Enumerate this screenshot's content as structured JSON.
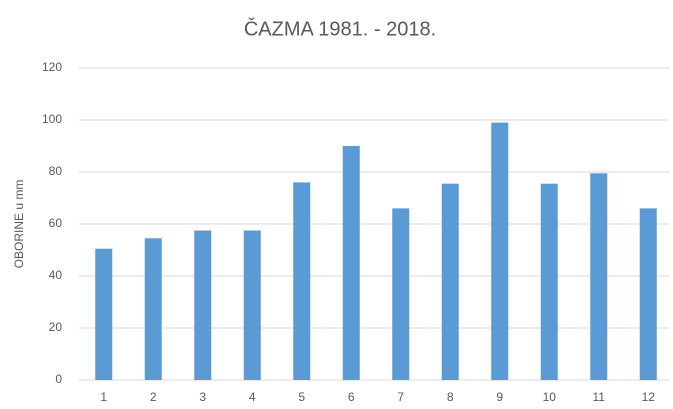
{
  "chart_data": {
    "type": "bar",
    "title": "ČAZMA 1981. - 2018.",
    "y_label": "OBORINE u mm",
    "categories": [
      "1",
      "2",
      "3",
      "4",
      "5",
      "6",
      "7",
      "8",
      "9",
      "10",
      "11",
      "12"
    ],
    "values": [
      50.5,
      54.5,
      57.5,
      57.5,
      76,
      90,
      66,
      75.5,
      99,
      75.5,
      79.5,
      66
    ],
    "color": "#5b9bd5",
    "ylim": [
      0,
      120
    ],
    "yticks": [
      0,
      20,
      40,
      60,
      80,
      100,
      120
    ],
    "grid": true
  }
}
